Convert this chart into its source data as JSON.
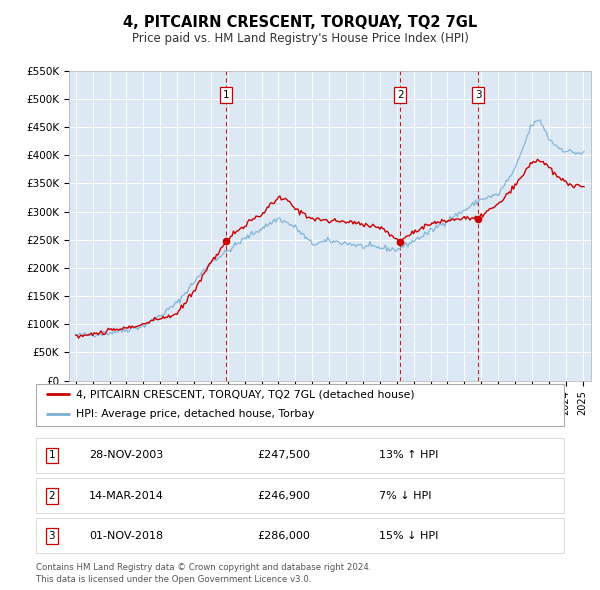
{
  "title": "4, PITCAIRN CRESCENT, TORQUAY, TQ2 7GL",
  "subtitle": "Price paid vs. HM Land Registry's House Price Index (HPI)",
  "legend_line1": "4, PITCAIRN CRESCENT, TORQUAY, TQ2 7GL (detached house)",
  "legend_line2": "HPI: Average price, detached house, Torbay",
  "sale_color": "#cc0000",
  "hpi_color": "#7bafd4",
  "background_color": "#ffffff",
  "plot_bg_color": "#dce9f5",
  "grid_color": "#ffffff",
  "ylim": [
    0,
    550000
  ],
  "yticks": [
    0,
    50000,
    100000,
    150000,
    200000,
    250000,
    300000,
    350000,
    400000,
    450000,
    500000,
    550000
  ],
  "ytick_labels": [
    "£0",
    "£50K",
    "£100K",
    "£150K",
    "£200K",
    "£250K",
    "£300K",
    "£350K",
    "£400K",
    "£450K",
    "£500K",
    "£550K"
  ],
  "xlim_start": 1994.6,
  "xlim_end": 2025.5,
  "sale_points": [
    {
      "year": 2003.91,
      "price": 247500,
      "label": "1"
    },
    {
      "year": 2014.2,
      "price": 246900,
      "label": "2"
    },
    {
      "year": 2018.83,
      "price": 286000,
      "label": "3"
    }
  ],
  "vline_color": "#cc0000",
  "transactions": [
    {
      "label": "1",
      "date": "28-NOV-2003",
      "price": "£247,500",
      "hpi_note": "13% ↑ HPI"
    },
    {
      "label": "2",
      "date": "14-MAR-2014",
      "price": "£246,900",
      "hpi_note": "7% ↓ HPI"
    },
    {
      "label": "3",
      "date": "01-NOV-2018",
      "price": "£286,000",
      "hpi_note": "15% ↓ HPI"
    }
  ],
  "footer_line1": "Contains HM Land Registry data © Crown copyright and database right 2024.",
  "footer_line2": "This data is licensed under the Open Government Licence v3.0."
}
